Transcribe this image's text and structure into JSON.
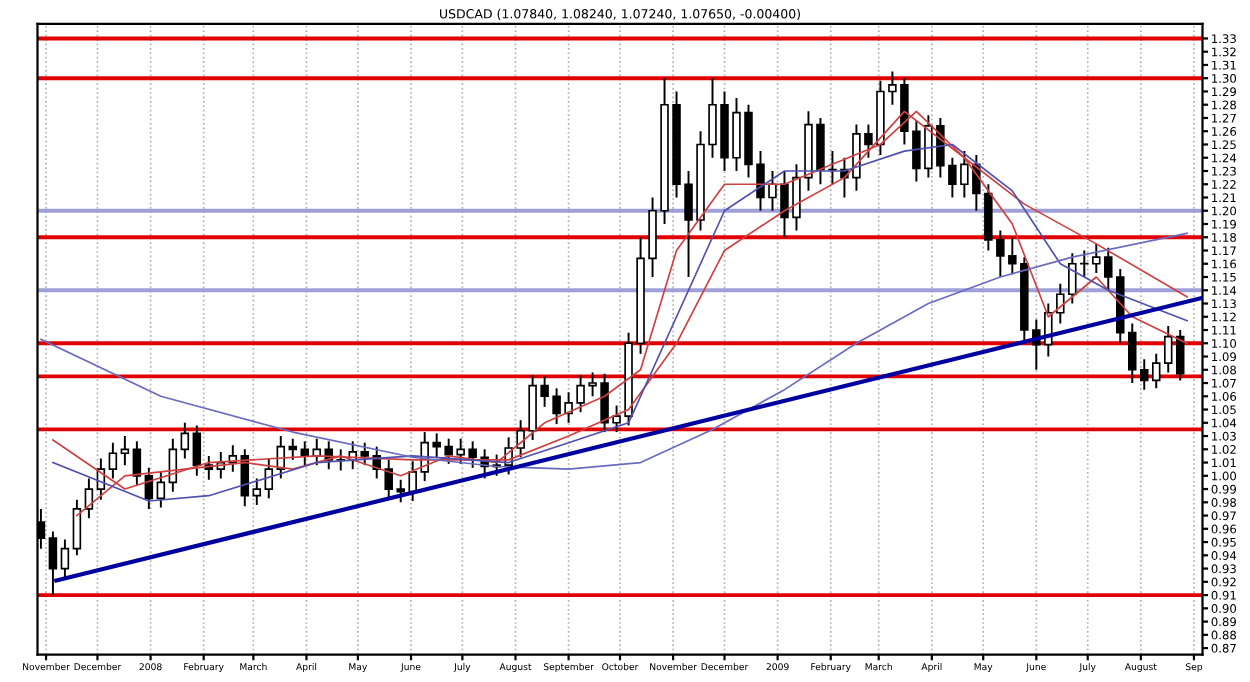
{
  "chart_data": {
    "type": "candlestick",
    "title": "USDCAD (1.07840, 1.08240, 1.07240, 1.07650, -0.00400)",
    "color": "#000000",
    "x": [
      "2007-10-29",
      "2007-11-05",
      "2007-11-12",
      "2007-11-19",
      "2007-11-26",
      "2007-12-03",
      "2007-12-10",
      "2007-12-17",
      "2007-12-24",
      "2007-12-31",
      "2008-01-07",
      "2008-01-14",
      "2008-01-21",
      "2008-01-28",
      "2008-02-04",
      "2008-02-11",
      "2008-02-18",
      "2008-02-25",
      "2008-03-03",
      "2008-03-10",
      "2008-03-17",
      "2008-03-24",
      "2008-03-31",
      "2008-04-07",
      "2008-04-14",
      "2008-04-21",
      "2008-04-28",
      "2008-05-05",
      "2008-05-12",
      "2008-05-19",
      "2008-05-26",
      "2008-06-02",
      "2008-06-09",
      "2008-06-16",
      "2008-06-23",
      "2008-06-30",
      "2008-07-07",
      "2008-07-14",
      "2008-07-21",
      "2008-07-28",
      "2008-08-04",
      "2008-08-11",
      "2008-08-18",
      "2008-08-25",
      "2008-09-01",
      "2008-09-08",
      "2008-09-15",
      "2008-09-22",
      "2008-09-29",
      "2008-10-06",
      "2008-10-13",
      "2008-10-20",
      "2008-10-27",
      "2008-11-03",
      "2008-11-10",
      "2008-11-17",
      "2008-11-24",
      "2008-12-01",
      "2008-12-08",
      "2008-12-15",
      "2008-12-22",
      "2008-12-29",
      "2009-01-05",
      "2009-01-12",
      "2009-01-19",
      "2009-01-26",
      "2009-02-02",
      "2009-02-09",
      "2009-02-16",
      "2009-02-23",
      "2009-03-02",
      "2009-03-09",
      "2009-03-16",
      "2009-03-23",
      "2009-03-30",
      "2009-04-06",
      "2009-04-13",
      "2009-04-20",
      "2009-04-27",
      "2009-05-04",
      "2009-05-11",
      "2009-05-18",
      "2009-05-25",
      "2009-06-01",
      "2009-06-08",
      "2009-06-15",
      "2009-06-22",
      "2009-06-29",
      "2009-07-06",
      "2009-07-13",
      "2009-07-20",
      "2009-07-27",
      "2009-08-03",
      "2009-08-10",
      "2009-08-17",
      "2009-08-24"
    ],
    "ohlc": [
      [
        0.965,
        0.975,
        0.945,
        0.953
      ],
      [
        0.953,
        0.958,
        0.91,
        0.93
      ],
      [
        0.93,
        0.952,
        0.922,
        0.945
      ],
      [
        0.945,
        0.982,
        0.94,
        0.975
      ],
      [
        0.975,
        0.998,
        0.968,
        0.99
      ],
      [
        0.99,
        1.013,
        0.982,
        1.005
      ],
      [
        1.005,
        1.025,
        0.998,
        1.017
      ],
      [
        1.017,
        1.03,
        1.008,
        1.02
      ],
      [
        1.02,
        1.026,
        0.993,
        1.0
      ],
      [
        1.0,
        1.006,
        0.975,
        0.983
      ],
      [
        0.983,
        1.003,
        0.976,
        0.995
      ],
      [
        0.995,
        1.028,
        0.988,
        1.02
      ],
      [
        1.02,
        1.04,
        1.013,
        1.032
      ],
      [
        1.032,
        1.038,
        1.0,
        1.008
      ],
      [
        1.008,
        1.015,
        0.997,
        1.005
      ],
      [
        1.005,
        1.018,
        0.998,
        1.01
      ],
      [
        1.01,
        1.023,
        1.003,
        1.015
      ],
      [
        1.015,
        1.02,
        0.977,
        0.985
      ],
      [
        0.985,
        0.998,
        0.978,
        0.99
      ],
      [
        0.99,
        1.013,
        0.983,
        1.005
      ],
      [
        1.005,
        1.03,
        0.998,
        1.022
      ],
      [
        1.022,
        1.028,
        1.012,
        1.02
      ],
      [
        1.02,
        1.026,
        1.008,
        1.015
      ],
      [
        1.015,
        1.028,
        1.008,
        1.02
      ],
      [
        1.02,
        1.026,
        1.005,
        1.012
      ],
      [
        1.012,
        1.02,
        1.004,
        1.012
      ],
      [
        1.012,
        1.026,
        1.005,
        1.018
      ],
      [
        1.018,
        1.025,
        1.008,
        1.015
      ],
      [
        1.015,
        1.022,
        0.998,
        1.005
      ],
      [
        1.005,
        1.012,
        0.982,
        0.99
      ],
      [
        0.99,
        0.997,
        0.98,
        0.988
      ],
      [
        0.988,
        1.011,
        0.981,
        1.003
      ],
      [
        1.003,
        1.033,
        0.996,
        1.025
      ],
      [
        1.025,
        1.032,
        1.014,
        1.022
      ],
      [
        1.022,
        1.028,
        1.009,
        1.016
      ],
      [
        1.016,
        1.028,
        1.009,
        1.02
      ],
      [
        1.02,
        1.026,
        1.006,
        1.014
      ],
      [
        1.014,
        1.02,
        0.998,
        1.007
      ],
      [
        1.007,
        1.016,
        1.0,
        1.008
      ],
      [
        1.008,
        1.029,
        1.001,
        1.021
      ],
      [
        1.021,
        1.042,
        1.014,
        1.034
      ],
      [
        1.034,
        1.076,
        1.027,
        1.068
      ],
      [
        1.068,
        1.075,
        1.052,
        1.06
      ],
      [
        1.06,
        1.066,
        1.039,
        1.047
      ],
      [
        1.047,
        1.063,
        1.04,
        1.055
      ],
      [
        1.055,
        1.076,
        1.048,
        1.068
      ],
      [
        1.068,
        1.078,
        1.06,
        1.07
      ],
      [
        1.07,
        1.077,
        1.033,
        1.04
      ],
      [
        1.04,
        1.053,
        1.033,
        1.045
      ],
      [
        1.045,
        1.108,
        1.038,
        1.1
      ],
      [
        1.1,
        1.18,
        1.092,
        1.164
      ],
      [
        1.164,
        1.21,
        1.15,
        1.2
      ],
      [
        1.2,
        1.3,
        1.19,
        1.28
      ],
      [
        1.28,
        1.29,
        1.21,
        1.22
      ],
      [
        1.22,
        1.23,
        1.15,
        1.193
      ],
      [
        1.193,
        1.26,
        1.185,
        1.25
      ],
      [
        1.25,
        1.3,
        1.24,
        1.28
      ],
      [
        1.28,
        1.29,
        1.23,
        1.24
      ],
      [
        1.24,
        1.285,
        1.23,
        1.274
      ],
      [
        1.274,
        1.28,
        1.225,
        1.235
      ],
      [
        1.235,
        1.245,
        1.2,
        1.21
      ],
      [
        1.21,
        1.23,
        1.2,
        1.22
      ],
      [
        1.22,
        1.23,
        1.18,
        1.195
      ],
      [
        1.195,
        1.235,
        1.185,
        1.225
      ],
      [
        1.225,
        1.275,
        1.215,
        1.265
      ],
      [
        1.265,
        1.27,
        1.22,
        1.231
      ],
      [
        1.231,
        1.245,
        1.22,
        1.231
      ],
      [
        1.231,
        1.24,
        1.21,
        1.225
      ],
      [
        1.225,
        1.265,
        1.215,
        1.258
      ],
      [
        1.258,
        1.265,
        1.24,
        1.25
      ],
      [
        1.25,
        1.298,
        1.242,
        1.29
      ],
      [
        1.29,
        1.305,
        1.28,
        1.295
      ],
      [
        1.295,
        1.3,
        1.25,
        1.26
      ],
      [
        1.26,
        1.268,
        1.222,
        1.232
      ],
      [
        1.232,
        1.272,
        1.225,
        1.264
      ],
      [
        1.264,
        1.27,
        1.225,
        1.234
      ],
      [
        1.234,
        1.24,
        1.21,
        1.22
      ],
      [
        1.22,
        1.245,
        1.21,
        1.235
      ],
      [
        1.235,
        1.242,
        1.2,
        1.213
      ],
      [
        1.213,
        1.22,
        1.17,
        1.178
      ],
      [
        1.178,
        1.185,
        1.15,
        1.166
      ],
      [
        1.166,
        1.18,
        1.152,
        1.16
      ],
      [
        1.16,
        1.165,
        1.1,
        1.11
      ],
      [
        1.11,
        1.118,
        1.08,
        1.099
      ],
      [
        1.099,
        1.13,
        1.09,
        1.123
      ],
      [
        1.123,
        1.145,
        1.115,
        1.137
      ],
      [
        1.137,
        1.168,
        1.13,
        1.16
      ],
      [
        1.16,
        1.17,
        1.15,
        1.16
      ],
      [
        1.16,
        1.175,
        1.153,
        1.165
      ],
      [
        1.165,
        1.172,
        1.14,
        1.15
      ],
      [
        1.15,
        1.156,
        1.1,
        1.108
      ],
      [
        1.108,
        1.115,
        1.07,
        1.08
      ],
      [
        1.08,
        1.088,
        1.065,
        1.072
      ],
      [
        1.072,
        1.092,
        1.066,
        1.085
      ],
      [
        1.085,
        1.113,
        1.078,
        1.105
      ],
      [
        1.105,
        1.11,
        1.072,
        1.077
      ]
    ],
    "series": [
      {
        "type": "line",
        "color": "#d04040",
        "x": [
          "2007-11-19",
          "2007-12-17",
          "2008-01-21",
          "2008-02-25",
          "2008-03-24",
          "2008-04-21",
          "2008-05-26",
          "2008-06-23",
          "2008-07-21",
          "2008-08-18",
          "2008-09-22",
          "2008-10-13",
          "2008-11-03",
          "2008-12-01",
          "2009-01-05",
          "2009-02-02",
          "2009-03-02",
          "2009-03-23",
          "2009-04-20",
          "2009-05-18",
          "2009-06-08",
          "2009-07-06",
          "2009-07-27",
          "2009-08-28"
        ],
        "values": [
          0.97,
          1.0,
          1.005,
          1.01,
          1.005,
          1.015,
          1.0,
          1.015,
          1.01,
          1.04,
          1.06,
          1.08,
          1.17,
          1.22,
          1.22,
          1.235,
          1.25,
          1.275,
          1.24,
          1.19,
          1.12,
          1.15,
          1.12,
          1.1
        ]
      },
      {
        "type": "line",
        "color": "#d04040",
        "x": [
          "2007-11-05",
          "2007-12-17",
          "2008-02-04",
          "2008-04-07",
          "2008-06-02",
          "2008-07-28",
          "2008-09-01",
          "2008-10-06",
          "2008-11-03",
          "2008-12-01",
          "2009-01-05",
          "2009-02-09",
          "2009-03-16",
          "2009-04-20",
          "2009-05-25",
          "2009-07-06",
          "2009-08-28"
        ],
        "values": [
          1.027,
          0.99,
          1.01,
          1.015,
          1.012,
          1.012,
          1.03,
          1.05,
          1.1,
          1.17,
          1.2,
          1.225,
          1.275,
          1.24,
          1.205,
          1.175,
          1.135
        ]
      },
      {
        "type": "line",
        "color": "#5050b0",
        "x": [
          "2007-11-05",
          "2007-12-31",
          "2008-02-04",
          "2008-04-07",
          "2008-06-02",
          "2008-07-28",
          "2008-09-01",
          "2008-10-06",
          "2008-11-03",
          "2008-12-01",
          "2009-01-05",
          "2009-02-09",
          "2009-03-16",
          "2009-04-13",
          "2009-05-18",
          "2009-06-15",
          "2009-07-13",
          "2009-08-28"
        ],
        "values": [
          1.01,
          0.981,
          0.985,
          1.01,
          1.015,
          1.01,
          1.025,
          1.04,
          1.12,
          1.2,
          1.23,
          1.23,
          1.245,
          1.25,
          1.215,
          1.16,
          1.14,
          1.117
        ]
      },
      {
        "type": "line",
        "color": "#6a6ac0",
        "x": [
          "2007-10-29",
          "2008-01-07",
          "2008-03-24",
          "2008-06-02",
          "2008-07-21",
          "2008-09-01",
          "2008-10-13",
          "2008-11-24",
          "2009-01-05",
          "2009-02-16",
          "2009-03-30",
          "2009-05-11",
          "2009-06-22",
          "2009-08-28"
        ],
        "values": [
          1.103,
          1.06,
          1.033,
          1.014,
          1.007,
          1.005,
          1.01,
          1.035,
          1.065,
          1.1,
          1.13,
          1.15,
          1.165,
          1.183
        ]
      },
      {
        "type": "line",
        "color": "#0000a0",
        "x": [
          "2007-11-07",
          "2009-09-05"
        ],
        "values": [
          0.921,
          1.134
        ]
      }
    ],
    "ref_lines": [
      {
        "axis": "y",
        "value": 1.33,
        "color": "#e00000"
      },
      {
        "axis": "y",
        "value": 1.3,
        "color": "#e00000"
      },
      {
        "axis": "y",
        "value": 1.2,
        "color": "#a0a0d8"
      },
      {
        "axis": "y",
        "value": 1.18,
        "color": "#e00000"
      },
      {
        "axis": "y",
        "value": 1.14,
        "color": "#a0a0d8"
      },
      {
        "axis": "y",
        "value": 1.1,
        "color": "#e00000"
      },
      {
        "axis": "y",
        "value": 1.075,
        "color": "#e00000"
      },
      {
        "axis": "y",
        "value": 1.035,
        "color": "#e00000"
      },
      {
        "axis": "y",
        "value": 0.91,
        "color": "#e00000"
      }
    ],
    "xlim": [
      "2007-10-27",
      "2009-09-06"
    ],
    "xticks": [
      {
        "value": "2007-11-01",
        "label": "November"
      },
      {
        "value": "2007-12-01",
        "label": "December"
      },
      {
        "value": "2008-01-01",
        "label": "2008"
      },
      {
        "value": "2008-02-01",
        "label": "February"
      },
      {
        "value": "2008-03-01",
        "label": "March"
      },
      {
        "value": "2008-04-01",
        "label": "April"
      },
      {
        "value": "2008-05-01",
        "label": "May"
      },
      {
        "value": "2008-06-01",
        "label": "June"
      },
      {
        "value": "2008-07-01",
        "label": "July"
      },
      {
        "value": "2008-08-01",
        "label": "August"
      },
      {
        "value": "2008-09-01",
        "label": "September"
      },
      {
        "value": "2008-10-01",
        "label": "October"
      },
      {
        "value": "2008-11-01",
        "label": "November"
      },
      {
        "value": "2008-12-01",
        "label": "December"
      },
      {
        "value": "2009-01-01",
        "label": "2009"
      },
      {
        "value": "2009-02-01",
        "label": "February"
      },
      {
        "value": "2009-03-01",
        "label": "March"
      },
      {
        "value": "2009-04-01",
        "label": "April"
      },
      {
        "value": "2009-05-01",
        "label": "May"
      },
      {
        "value": "2009-06-01",
        "label": "June"
      },
      {
        "value": "2009-07-01",
        "label": "July"
      },
      {
        "value": "2009-08-01",
        "label": "August"
      },
      {
        "value": "2009-09-01",
        "label": "Sep"
      }
    ],
    "ylim": [
      0.865,
      1.341
    ],
    "yticks": [
      0.87,
      0.88,
      0.89,
      {
        "value": 0.9,
        "label": "0.90"
      },
      0.91,
      0.92,
      0.93,
      0.94,
      0.95,
      0.96,
      0.97,
      0.98,
      0.99,
      {
        "value": 1.0,
        "label": "1.00"
      },
      1.01,
      1.02,
      1.03,
      1.04,
      1.05,
      1.06,
      1.07,
      1.08,
      1.09,
      {
        "value": 1.1,
        "label": "1.10"
      },
      1.11,
      1.12,
      1.13,
      1.14,
      1.15,
      1.16,
      1.17,
      1.18,
      1.19,
      {
        "value": 1.2,
        "label": "1.20"
      },
      1.21,
      1.22,
      1.23,
      1.24,
      1.25,
      1.26,
      1.27,
      1.28,
      1.29,
      {
        "value": 1.3,
        "label": "1.30"
      },
      1.31,
      1.32,
      1.33
    ],
    "grid": "x"
  }
}
